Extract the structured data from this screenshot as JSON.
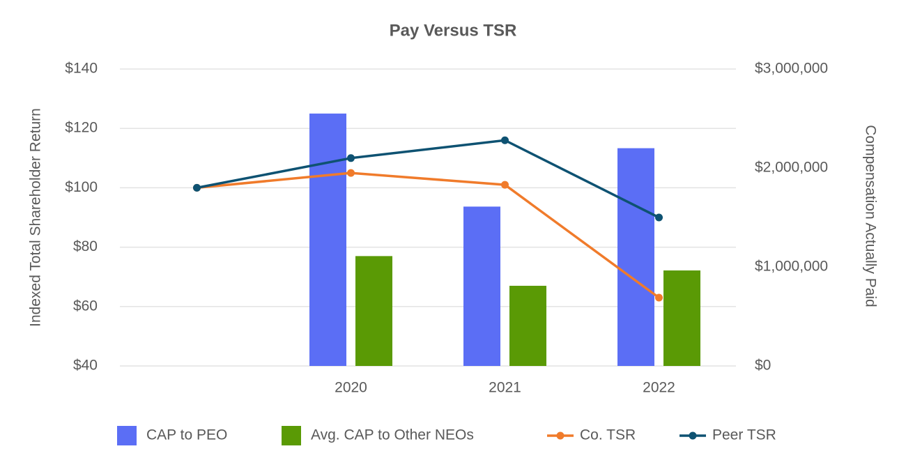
{
  "chart_data": {
    "type": "bar-line",
    "title": "Pay Versus TSR",
    "ylabel": "Indexed Total Shareholder Return",
    "y2label": "Compensation Actually Paid",
    "categories": [
      null,
      "2020",
      "2021",
      "2022"
    ],
    "series": [
      {
        "name": "CAP to PEO",
        "type": "bar",
        "axis": "y2",
        "color": "#5b6ef5",
        "values": [
          null,
          2550000,
          1610000,
          2200000
        ]
      },
      {
        "name": "Avg. CAP to Other NEOs",
        "type": "bar",
        "axis": "y2",
        "color": "#5a9a05",
        "values": [
          null,
          1110000,
          810000,
          965000
        ]
      },
      {
        "name": "Co. TSR",
        "type": "line",
        "color": "#f07b2b",
        "values": [
          100,
          105,
          101,
          63
        ]
      },
      {
        "name": "Peer TSR",
        "type": "line",
        "color": "#0e5272",
        "values": [
          100,
          110,
          116,
          90
        ]
      }
    ],
    "ylim": [
      40,
      140
    ],
    "yticks": [
      {
        "value": 40,
        "label": "$40"
      },
      {
        "value": 60,
        "label": "$60"
      },
      {
        "value": 80,
        "label": "$80"
      },
      {
        "value": 100,
        "label": "$100"
      },
      {
        "value": 120,
        "label": "$120"
      },
      {
        "value": 140,
        "label": "$140"
      }
    ],
    "y2lim": [
      0,
      3000000
    ],
    "y2ticks": [
      {
        "value": 0,
        "label": "$0"
      },
      {
        "value": 1000000,
        "label": "$1,000,000"
      },
      {
        "value": 2000000,
        "label": "$2,000,000"
      },
      {
        "value": 3000000,
        "label": "$3,000,000"
      }
    ],
    "grid": true,
    "legend": "bottom"
  }
}
